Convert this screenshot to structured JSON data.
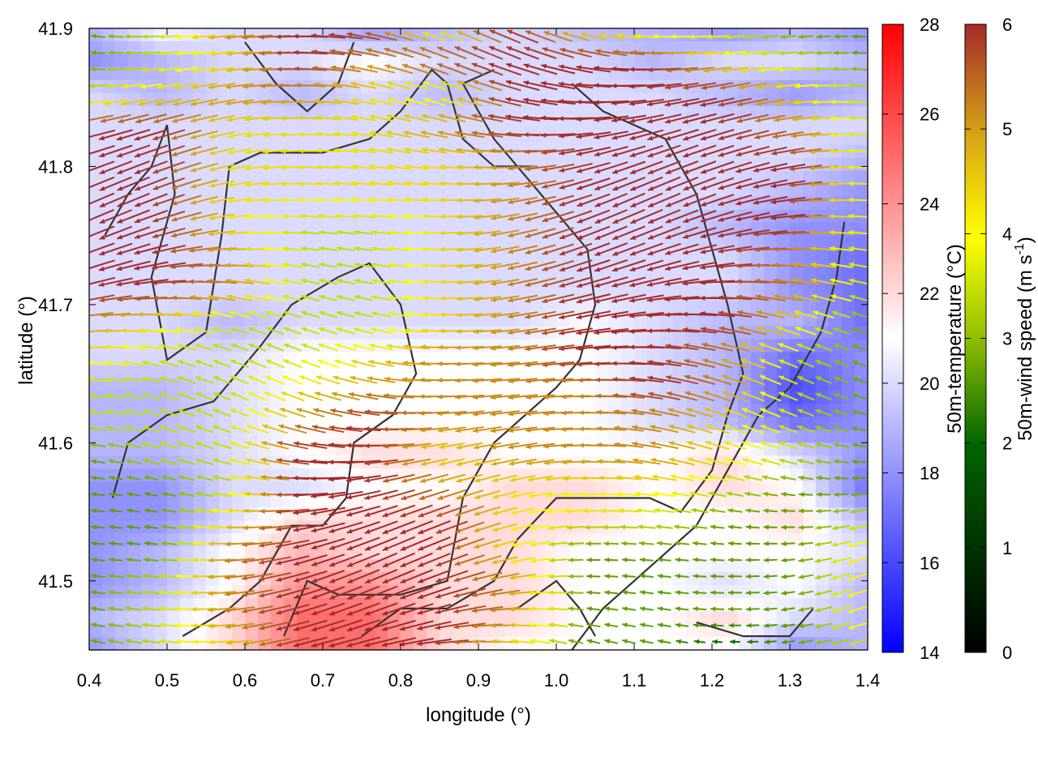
{
  "chart_data": {
    "type": "heatmap",
    "title": "",
    "xlabel": "longitude (°)",
    "ylabel": "latitude (°)",
    "xlim": [
      0.4,
      1.4
    ],
    "ylim": [
      41.45,
      41.9
    ],
    "x_ticks": [
      "0.4",
      "0.5",
      "0.6",
      "0.7",
      "0.8",
      "0.9",
      "1.0",
      "1.1",
      "1.2",
      "1.3",
      "1.4"
    ],
    "y_ticks": [
      "41.5",
      "41.6",
      "41.7",
      "41.8",
      "41.9"
    ],
    "grid": false,
    "colorbars": [
      {
        "label_text": "50m-temperature (°C)",
        "range": [
          14,
          28
        ],
        "ticks": [
          "14",
          "16",
          "18",
          "20",
          "22",
          "24",
          "26",
          "28"
        ],
        "colors": [
          "#0000ff",
          "#ffffff",
          "#ff0000"
        ]
      },
      {
        "label_main": "50m-wind speed (m s",
        "label_sup": "-1",
        "label_close": ")",
        "range": [
          0,
          6
        ],
        "ticks": [
          "0",
          "1",
          "2",
          "3",
          "4",
          "5",
          "6"
        ],
        "colors": [
          "#000000",
          "#006400",
          "#8fbf00",
          "#ffff00",
          "#d4a017",
          "#a52a2a"
        ]
      }
    ],
    "series": [
      {
        "type": "heatmap",
        "variable": "50m-temperature",
        "unit": "°C",
        "resolution": [
          20,
          12
        ],
        "approx_values": [
          [
            19,
            21,
            20,
            20,
            18,
            19,
            20,
            19,
            19,
            18,
            19,
            18
          ],
          [
            18,
            19,
            20,
            20,
            21,
            20,
            20,
            20,
            19,
            20,
            20,
            19
          ],
          [
            20,
            19,
            20,
            19,
            20,
            19,
            20,
            20,
            20,
            19,
            18,
            19
          ],
          [
            20,
            20,
            20,
            20,
            20,
            20,
            20,
            20,
            20,
            20,
            20,
            20
          ],
          [
            20,
            20,
            20,
            20,
            20,
            20,
            20,
            20,
            20,
            20,
            20,
            19
          ],
          [
            20,
            20,
            20,
            20,
            20,
            20,
            20,
            20,
            20,
            20,
            19,
            18
          ],
          [
            20,
            20,
            20,
            20,
            20,
            20,
            20,
            20,
            20,
            19,
            18,
            18
          ],
          [
            20,
            20,
            20,
            20,
            20,
            20,
            20,
            20,
            20,
            20,
            18,
            17
          ],
          [
            20,
            20,
            20,
            20,
            20,
            20,
            20,
            20,
            20,
            20,
            18,
            17
          ],
          [
            20,
            20,
            19,
            20,
            20,
            20,
            20,
            21,
            20,
            19,
            19,
            17
          ],
          [
            20,
            20,
            20,
            21,
            21,
            21,
            21,
            21,
            20,
            19,
            17,
            18
          ],
          [
            19,
            19,
            20,
            21,
            21,
            21,
            21,
            21,
            20,
            19,
            16,
            18
          ],
          [
            19,
            19,
            20,
            21,
            21,
            21,
            21,
            21,
            20,
            19,
            17,
            18
          ],
          [
            19,
            19,
            20,
            21,
            22,
            22,
            21,
            21,
            21,
            22,
            20,
            18
          ],
          [
            18,
            18,
            20,
            20,
            21,
            21,
            22,
            22,
            21,
            22,
            21,
            17
          ],
          [
            18,
            18,
            20,
            22,
            22,
            22,
            22,
            22,
            21,
            21,
            22,
            19
          ],
          [
            18,
            19,
            21,
            23,
            22,
            22,
            22,
            21,
            21,
            21,
            21,
            20
          ],
          [
            18,
            19,
            21,
            24,
            24,
            22,
            22,
            21,
            21,
            20,
            21,
            19
          ],
          [
            19,
            20,
            22,
            25,
            25,
            22,
            22,
            21,
            21,
            22,
            20,
            19
          ],
          [
            18,
            20,
            22,
            25,
            25,
            22,
            21,
            21,
            21,
            21,
            18,
            19
          ]
        ]
      },
      {
        "type": "vector",
        "variable": "50m-wind",
        "unit": "m s-1",
        "resolution": [
          20,
          12
        ],
        "direction_approx": "mostly westward (arrows pointing toward -x)",
        "speed_values": [
          [
            2,
            3,
            5,
            6,
            6,
            3,
            6,
            4,
            3,
            3,
            2,
            2
          ],
          [
            2,
            3,
            4,
            6,
            5,
            6,
            6,
            6,
            6,
            4,
            3,
            2
          ],
          [
            3,
            4,
            5,
            5,
            4,
            3,
            6,
            6,
            6,
            6,
            4,
            3
          ],
          [
            6,
            6,
            4,
            4,
            4,
            5,
            6,
            6,
            6,
            6,
            5,
            3
          ],
          [
            6,
            6,
            4,
            4,
            4,
            4,
            5,
            6,
            6,
            6,
            6,
            3
          ],
          [
            6,
            6,
            4,
            4,
            4,
            4,
            5,
            6,
            6,
            6,
            6,
            3
          ],
          [
            6,
            6,
            4,
            3,
            3,
            4,
            5,
            6,
            6,
            6,
            6,
            3
          ],
          [
            6,
            6,
            5,
            3,
            3,
            4,
            5,
            6,
            6,
            6,
            5,
            3
          ],
          [
            6,
            6,
            5,
            3,
            3,
            4,
            5,
            6,
            6,
            6,
            5,
            3
          ],
          [
            5,
            4,
            3,
            3,
            3,
            4,
            5,
            6,
            6,
            6,
            4,
            2
          ],
          [
            4,
            3,
            3,
            3,
            4,
            5,
            5,
            6,
            6,
            5,
            3,
            2
          ],
          [
            3,
            3,
            3,
            4,
            5,
            5,
            5,
            5,
            6,
            5,
            3,
            2
          ],
          [
            3,
            3,
            3,
            5,
            6,
            5,
            5,
            5,
            5,
            4,
            3,
            2
          ],
          [
            2,
            3,
            3,
            6,
            6,
            4,
            5,
            5,
            5,
            4,
            3,
            2
          ],
          [
            2,
            2,
            3,
            6,
            6,
            5,
            4,
            4,
            4,
            3,
            2,
            2
          ],
          [
            2,
            2,
            4,
            6,
            6,
            6,
            4,
            3,
            3,
            2,
            2,
            3
          ],
          [
            2,
            2,
            5,
            6,
            6,
            6,
            4,
            2,
            2,
            2,
            2,
            4
          ],
          [
            2,
            3,
            5,
            6,
            6,
            6,
            5,
            2,
            2,
            2,
            2,
            4
          ],
          [
            2,
            3,
            5,
            6,
            6,
            6,
            5,
            2,
            2,
            2,
            2,
            4
          ],
          [
            2,
            3,
            4,
            6,
            6,
            6,
            4,
            2,
            2,
            1,
            2,
            3
          ]
        ]
      }
    ]
  }
}
